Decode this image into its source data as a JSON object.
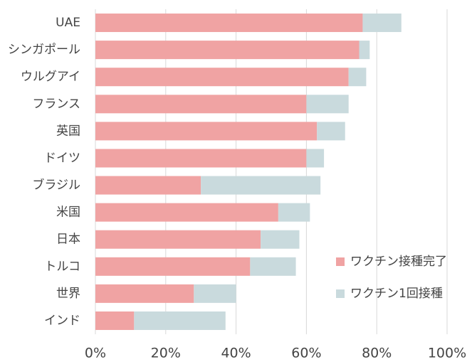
{
  "chart_data": {
    "type": "stacked_bar_horizontal",
    "categories": [
      "UAE",
      "シンガポール",
      "ウルグアイ",
      "フランス",
      "英国",
      "ドイツ",
      "ブラジル",
      "米国",
      "日本",
      "トルコ",
      "世界",
      "インド"
    ],
    "series": [
      {
        "name": "ワクチン接種完了",
        "color": "#f0a3a3",
        "values": [
          76,
          75,
          72,
          60,
          63,
          60,
          30,
          52,
          47,
          44,
          28,
          11
        ]
      },
      {
        "name": "ワクチン1回接種",
        "color": "#c9dadd",
        "values": [
          11,
          3,
          5,
          12,
          8,
          5,
          34,
          9,
          11,
          13,
          12,
          26
        ]
      }
    ],
    "xlim": [
      0,
      100
    ],
    "xticks": [
      {
        "value": 0,
        "label": "0%"
      },
      {
        "value": 20,
        "label": "20%"
      },
      {
        "value": 40,
        "label": "40%"
      },
      {
        "value": 60,
        "label": "60%"
      },
      {
        "value": 80,
        "label": "80%"
      },
      {
        "value": 100,
        "label": "100%"
      }
    ],
    "grid": true
  }
}
